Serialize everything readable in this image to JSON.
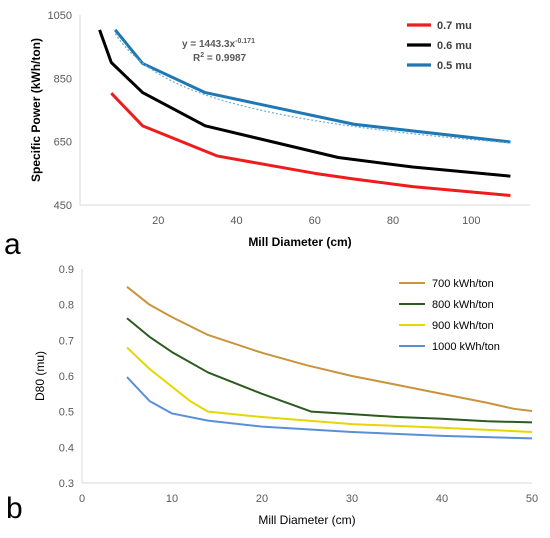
{
  "panel_a_label": "a",
  "panel_b_label": "b",
  "chart_data": [
    {
      "type": "line",
      "title": "",
      "xlabel": "Mill Diameter (cm)",
      "ylabel": "Specific Power (kWh/ton)",
      "xlim": [
        0,
        115
      ],
      "ylim": [
        450,
        1050
      ],
      "xticks": [
        "20",
        "40",
        "60",
        "80",
        "100"
      ],
      "yticks": [
        "450",
        "650",
        "850",
        "1050"
      ],
      "xtick_values": [
        20,
        40,
        60,
        80,
        100
      ],
      "ytick_values": [
        450,
        650,
        850,
        1050
      ],
      "grid": false,
      "legend_position": "top-right",
      "series": [
        {
          "name": "0.7 mu",
          "color": "#ee1c1c",
          "x": [
            8,
            16,
            35,
            60,
            70,
            85,
            110
          ],
          "y": [
            803,
            700,
            605,
            550,
            532,
            508,
            480
          ]
        },
        {
          "name": "0.6 mu",
          "color": "#000000",
          "x": [
            5,
            8,
            16,
            32,
            66,
            85,
            110
          ],
          "y": [
            1003,
            900,
            805,
            700,
            600,
            570,
            541
          ]
        },
        {
          "name": "0.5 mu",
          "color": "#1f77b4",
          "x": [
            9,
            16,
            32,
            70,
            110
          ],
          "y": [
            1003,
            897,
            805,
            705,
            649
          ]
        }
      ],
      "trendline": {
        "color": "#6baed6",
        "coefficient": 1443.3,
        "exponent": -0.171,
        "x_start": 9,
        "x_end": 110
      },
      "annotations": {
        "equation_main": "y = 1443.3x",
        "equation_exp": "-0.171",
        "r2_label": "R",
        "r2_exp": "2",
        "r2_value": " = 0.9987"
      }
    },
    {
      "type": "line",
      "title": "",
      "xlabel": "Mill Diameter (cm)",
      "ylabel": "D80 (mu)",
      "xlim": [
        0,
        50
      ],
      "ylim": [
        0.3,
        0.9
      ],
      "xticks": [
        "0",
        "10",
        "20",
        "30",
        "40",
        "50"
      ],
      "yticks": [
        "0.3",
        "0.4",
        "0.5",
        "0.6",
        "0.7",
        "0.8",
        "0.9"
      ],
      "xtick_values": [
        0,
        10,
        20,
        30,
        40,
        50
      ],
      "ytick_values": [
        0.3,
        0.4,
        0.5,
        0.6,
        0.7,
        0.8,
        0.9
      ],
      "grid": false,
      "legend_position": "top-right",
      "series": [
        {
          "name": "700 kWh/ton",
          "color": "#c8943c",
          "x": [
            5,
            7.5,
            10,
            14,
            20,
            25,
            30,
            35,
            40,
            45,
            48,
            50
          ],
          "y": [
            0.85,
            0.8,
            0.765,
            0.715,
            0.665,
            0.63,
            0.6,
            0.575,
            0.55,
            0.525,
            0.508,
            0.502
          ]
        },
        {
          "name": "800 kWh/ton",
          "color": "#2d5a1e",
          "x": [
            5,
            7.5,
            10,
            14,
            20,
            25.5,
            30,
            35,
            40,
            45,
            50
          ],
          "y": [
            0.762,
            0.71,
            0.667,
            0.61,
            0.55,
            0.5,
            0.493,
            0.485,
            0.48,
            0.473,
            0.47
          ]
        },
        {
          "name": "900 kWh/ton",
          "color": "#e5d800",
          "x": [
            5,
            7.5,
            10,
            12,
            14,
            20,
            30,
            40,
            50
          ],
          "y": [
            0.68,
            0.62,
            0.57,
            0.53,
            0.5,
            0.485,
            0.465,
            0.455,
            0.443
          ]
        },
        {
          "name": "1000 kWh/ton",
          "color": "#5a8fd8",
          "x": [
            5,
            7.5,
            10,
            14,
            20,
            30,
            40,
            50
          ],
          "y": [
            0.597,
            0.53,
            0.495,
            0.475,
            0.458,
            0.443,
            0.432,
            0.425
          ]
        }
      ]
    }
  ]
}
